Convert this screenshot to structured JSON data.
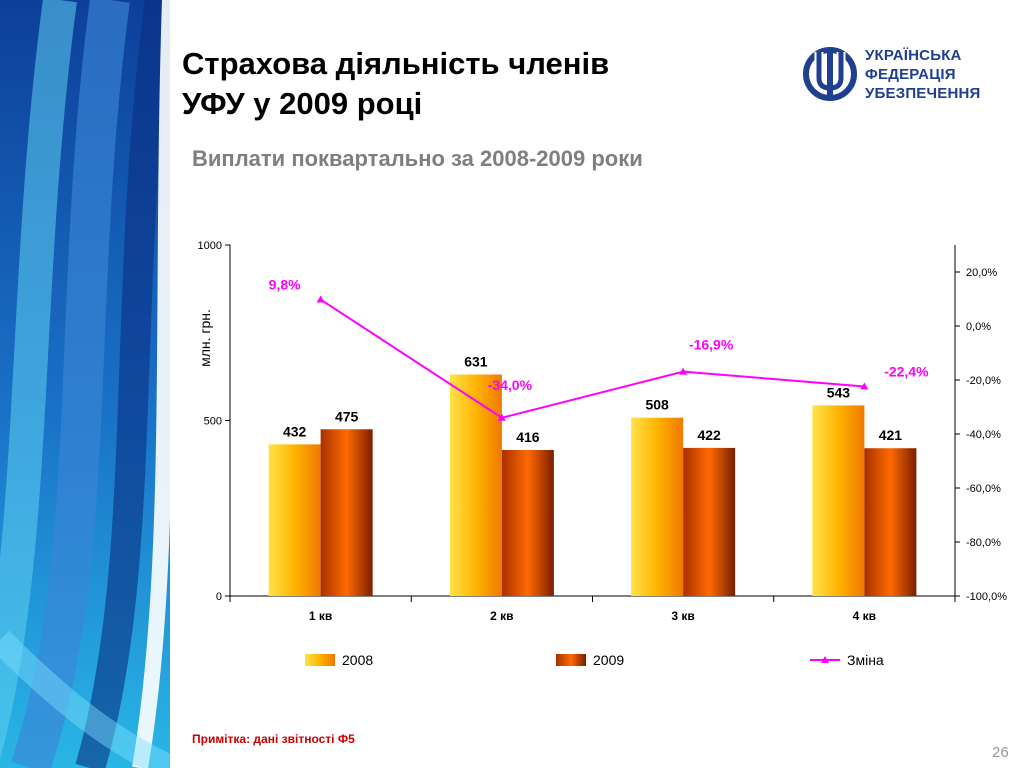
{
  "slide": {
    "title_lines": [
      "Страхова діяльність членів",
      "УФУ у 2009 році"
    ],
    "subtitle": "Виплати поквартально за 2008-2009 роки",
    "note": "Примітка: дані звітності Ф5",
    "page_number": "26"
  },
  "logo": {
    "lines": [
      "УКРАЇНСЬКА",
      "ФЕДЕРАЦІЯ",
      "УБЕЗПЕЧЕННЯ"
    ],
    "color": "#1f3f8f"
  },
  "chart_data": {
    "type": "bar",
    "categories": [
      "1 кв",
      "2 кв",
      "3 кв",
      "4 кв"
    ],
    "series": [
      {
        "name": "2008",
        "values": [
          432,
          631,
          508,
          543
        ],
        "labels": [
          "432",
          "631",
          "508",
          "543"
        ],
        "color": "#ffb400"
      },
      {
        "name": "2009",
        "values": [
          475,
          416,
          422,
          421
        ],
        "labels": [
          "475",
          "416",
          "422",
          "421"
        ],
        "color": "#e05000"
      }
    ],
    "line_series": {
      "name": "Зміна",
      "type": "line",
      "axis": "right",
      "values": [
        9.8,
        -34.0,
        -16.9,
        -22.4
      ],
      "labels": [
        "9,8%",
        "-34,0%",
        "-16,9%",
        "-22,4%"
      ],
      "color": "#ff00ff"
    },
    "ylabel": "млн. грн.",
    "ylim": [
      0,
      1000
    ],
    "yticks": [
      0,
      500,
      1000
    ],
    "ytick_labels": [
      "0",
      "500",
      "1000"
    ],
    "y2lim": [
      -100,
      30
    ],
    "y2ticks": [
      -100,
      -80,
      -60,
      -40,
      -20,
      0,
      20
    ],
    "y2tick_labels": [
      "-100,0%",
      "-80,0%",
      "-60,0%",
      "-40,0%",
      "-20,0%",
      "0,0%",
      "20,0%"
    ],
    "legend": "bottom",
    "grid": false
  }
}
